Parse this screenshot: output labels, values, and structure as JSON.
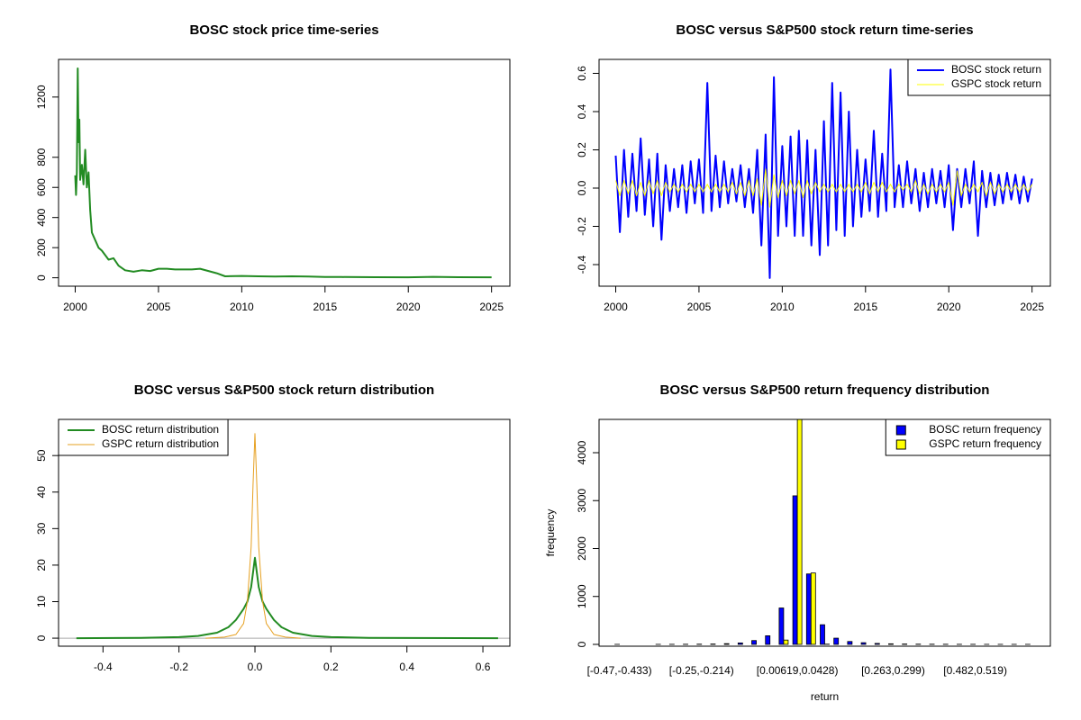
{
  "chart_data": [
    {
      "type": "line",
      "title": "BOSC stock price time-series",
      "xlim": [
        1999,
        2026.1
      ],
      "xticks": [
        2000,
        2005,
        2010,
        2015,
        2020,
        2025
      ],
      "ylim": [
        -56,
        1450
      ],
      "yticks": [
        0,
        200,
        400,
        600,
        800,
        1200
      ],
      "series": [
        {
          "color": "#228b22",
          "width": 2,
          "x": [
            2000,
            2000.05,
            2000.1,
            2000.15,
            2000.2,
            2000.25,
            2000.3,
            2000.4,
            2000.5,
            2000.6,
            2000.7,
            2000.8,
            2000.9,
            2001,
            2001.2,
            2001.4,
            2001.6,
            2001.8,
            2002,
            2002.3,
            2002.6,
            2003,
            2003.5,
            2004,
            2004.5,
            2005,
            2005.5,
            2006,
            2007,
            2007.5,
            2008,
            2008.5,
            2009,
            2010,
            2011,
            2012,
            2013,
            2014,
            2015,
            2016,
            2018,
            2020,
            2021.5,
            2023,
            2025
          ],
          "values": [
            680,
            550,
            700,
            1390,
            900,
            1050,
            650,
            750,
            620,
            850,
            600,
            700,
            450,
            300,
            250,
            200,
            180,
            150,
            120,
            130,
            80,
            50,
            40,
            50,
            45,
            60,
            60,
            55,
            55,
            60,
            45,
            30,
            10,
            12,
            10,
            8,
            10,
            8,
            5,
            5,
            4,
            3,
            6,
            4,
            3
          ]
        }
      ]
    },
    {
      "type": "line",
      "title": "BOSC versus S&P500 stock return time-series",
      "xlim": [
        1999,
        2026.1
      ],
      "xticks": [
        2000,
        2005,
        2010,
        2015,
        2020,
        2025
      ],
      "ylim": [
        -0.513,
        0.673
      ],
      "yticks": [
        -0.4,
        -0.2,
        {
          "value": 0,
          "label": "0.0"
        },
        0.2,
        0.4,
        0.6
      ],
      "legend": "topright",
      "x": [
        2000,
        2000.25,
        2000.5,
        2000.75,
        2001,
        2001.25,
        2001.5,
        2001.75,
        2002,
        2002.25,
        2002.5,
        2002.75,
        2003,
        2003.25,
        2003.5,
        2003.75,
        2004,
        2004.25,
        2004.5,
        2004.75,
        2005,
        2005.25,
        2005.5,
        2005.75,
        2006,
        2006.25,
        2006.5,
        2006.75,
        2007,
        2007.25,
        2007.5,
        2007.75,
        2008,
        2008.25,
        2008.5,
        2008.75,
        2009,
        2009.25,
        2009.5,
        2009.75,
        2010,
        2010.25,
        2010.5,
        2010.75,
        2011,
        2011.25,
        2011.5,
        2011.75,
        2012,
        2012.25,
        2012.5,
        2012.75,
        2013,
        2013.25,
        2013.5,
        2013.75,
        2014,
        2014.25,
        2014.5,
        2014.75,
        2015,
        2015.25,
        2015.5,
        2015.75,
        2016,
        2016.25,
        2016.5,
        2016.75,
        2017,
        2017.25,
        2017.5,
        2017.75,
        2018,
        2018.25,
        2018.5,
        2018.75,
        2019,
        2019.25,
        2019.5,
        2019.75,
        2020,
        2020.25,
        2020.5,
        2020.75,
        2021,
        2021.25,
        2021.5,
        2021.75,
        2022,
        2022.25,
        2022.5,
        2022.75,
        2023,
        2023.25,
        2023.5,
        2023.75,
        2024,
        2024.25,
        2024.5,
        2024.75,
        2025
      ],
      "series": [
        {
          "name": "BOSC stock return",
          "color": "#0000ff",
          "width": 2,
          "values": [
            0.17,
            -0.23,
            0.2,
            -0.15,
            0.18,
            -0.12,
            0.26,
            -0.14,
            0.15,
            -0.2,
            0.18,
            -0.27,
            0.12,
            -0.12,
            0.1,
            -0.1,
            0.12,
            -0.13,
            0.14,
            -0.08,
            0.15,
            -0.13,
            0.55,
            -0.12,
            0.17,
            -0.1,
            0.14,
            -0.08,
            0.1,
            -0.07,
            0.12,
            -0.1,
            0.1,
            -0.13,
            0.2,
            -0.3,
            0.28,
            -0.47,
            0.58,
            -0.25,
            0.22,
            -0.2,
            0.27,
            -0.25,
            0.3,
            -0.25,
            0.25,
            -0.3,
            0.2,
            -0.35,
            0.35,
            -0.3,
            0.55,
            -0.22,
            0.5,
            -0.25,
            0.4,
            -0.2,
            0.2,
            -0.15,
            0.15,
            -0.12,
            0.3,
            -0.15,
            0.18,
            -0.12,
            0.62,
            -0.1,
            0.12,
            -0.1,
            0.14,
            -0.08,
            0.1,
            -0.12,
            0.08,
            -0.1,
            0.1,
            -0.08,
            0.09,
            -0.1,
            0.12,
            -0.22,
            0.1,
            -0.1,
            0.1,
            -0.08,
            0.14,
            -0.25,
            0.09,
            -0.1,
            0.08,
            -0.09,
            0.07,
            -0.08,
            0.08,
            -0.06,
            0.07,
            -0.08,
            0.06,
            -0.07,
            0.05
          ]
        },
        {
          "name": "GSPC stock return",
          "color": "#ffff00",
          "width": 1,
          "values": [
            0.04,
            -0.04,
            0.04,
            -0.03,
            0.04,
            -0.04,
            0.03,
            -0.04,
            0.04,
            -0.03,
            0.04,
            -0.04,
            0.03,
            -0.02,
            0.02,
            -0.02,
            0.02,
            -0.02,
            0.02,
            -0.02,
            0.02,
            -0.02,
            0.02,
            -0.02,
            0.02,
            -0.02,
            0.02,
            -0.02,
            0.03,
            -0.03,
            0.03,
            -0.04,
            0.04,
            -0.04,
            0.05,
            -0.09,
            0.1,
            -0.1,
            0.07,
            -0.05,
            0.04,
            -0.04,
            0.04,
            -0.03,
            0.04,
            -0.05,
            0.04,
            -0.03,
            0.03,
            -0.02,
            0.02,
            -0.02,
            0.02,
            -0.02,
            0.02,
            -0.02,
            0.02,
            -0.02,
            0.02,
            -0.02,
            0.03,
            -0.03,
            0.03,
            -0.02,
            0.03,
            -0.02,
            0.02,
            -0.02,
            0.02,
            -0.01,
            0.02,
            -0.02,
            0.04,
            -0.03,
            0.02,
            -0.03,
            0.02,
            -0.02,
            0.02,
            -0.02,
            0.03,
            -0.09,
            0.09,
            -0.04,
            0.02,
            -0.02,
            0.02,
            -0.02,
            0.03,
            -0.04,
            0.03,
            -0.03,
            0.02,
            -0.02,
            0.02,
            -0.02,
            0.02,
            -0.02,
            0.02,
            -0.02,
            0.02
          ]
        }
      ]
    },
    {
      "type": "line",
      "title": "BOSC versus S&P500 stock return distribution",
      "xlim": [
        -0.517,
        0.671
      ],
      "xticks": [
        -0.4,
        -0.2,
        {
          "value": 0,
          "label": "0.0"
        },
        0.2,
        0.4,
        0.6
      ],
      "ylim": [
        -2.2,
        59.9
      ],
      "yticks": [
        0,
        10,
        20,
        30,
        40,
        50
      ],
      "legend": "topleft",
      "zero_line": true,
      "series": [
        {
          "name": "BOSC return distribution",
          "color": "#228b22",
          "width": 2,
          "x": [
            -0.47,
            -0.3,
            -0.2,
            -0.15,
            -0.1,
            -0.07,
            -0.05,
            -0.03,
            -0.02,
            -0.01,
            0,
            0.01,
            0.02,
            0.03,
            0.05,
            0.07,
            0.1,
            0.15,
            0.2,
            0.3,
            0.64
          ],
          "values": [
            0,
            0.1,
            0.3,
            0.6,
            1.5,
            3,
            5,
            8,
            10,
            14,
            22,
            14,
            10,
            8,
            5,
            3,
            1.5,
            0.6,
            0.3,
            0.1,
            0
          ]
        },
        {
          "name": "GSPC return distribution",
          "color": "#e6a020",
          "width": 1,
          "x": [
            -0.13,
            -0.08,
            -0.05,
            -0.03,
            -0.02,
            -0.01,
            -0.005,
            0,
            0.005,
            0.01,
            0.02,
            0.03,
            0.05,
            0.08,
            0.12
          ],
          "values": [
            0,
            0.3,
            1,
            4,
            10,
            25,
            42,
            56,
            42,
            25,
            10,
            4,
            1,
            0.3,
            0
          ]
        }
      ]
    },
    {
      "type": "bar",
      "title": "BOSC versus S&P500 return frequency distribution",
      "x_label": "return",
      "y_label": "frequency",
      "ylim": [
        -38,
        4695
      ],
      "yticks": [
        0,
        1000,
        2000,
        3000,
        4000
      ],
      "legend": "topright",
      "categories": [
        "[-0.47,-0.433)",
        null,
        null,
        null,
        null,
        null,
        "[-0.25,-0.214)",
        null,
        null,
        null,
        null,
        null,
        null,
        "[0.00619,0.0428)",
        null,
        null,
        null,
        null,
        null,
        null,
        "[0.263,0.299)",
        null,
        null,
        null,
        null,
        null,
        "[0.482,0.519)",
        null,
        null,
        null,
        null
      ],
      "series": [
        {
          "name": "BOSC return frequency",
          "color": "#0000ff",
          "values": [
            1,
            0,
            0,
            1,
            2,
            3,
            5,
            8,
            15,
            30,
            80,
            180,
            760,
            3100,
            1470,
            410,
            130,
            60,
            35,
            20,
            12,
            8,
            5,
            4,
            3,
            2,
            2,
            1,
            1,
            1,
            1
          ]
        },
        {
          "name": "GSPC return frequency",
          "color": "#ffff00",
          "values": [
            0,
            0,
            0,
            0,
            0,
            0,
            0,
            0,
            0,
            0,
            0,
            0,
            90,
            4780,
            1490,
            5,
            0,
            0,
            0,
            0,
            0,
            0,
            0,
            0,
            0,
            0,
            0,
            0,
            0,
            0,
            0
          ]
        }
      ]
    }
  ]
}
